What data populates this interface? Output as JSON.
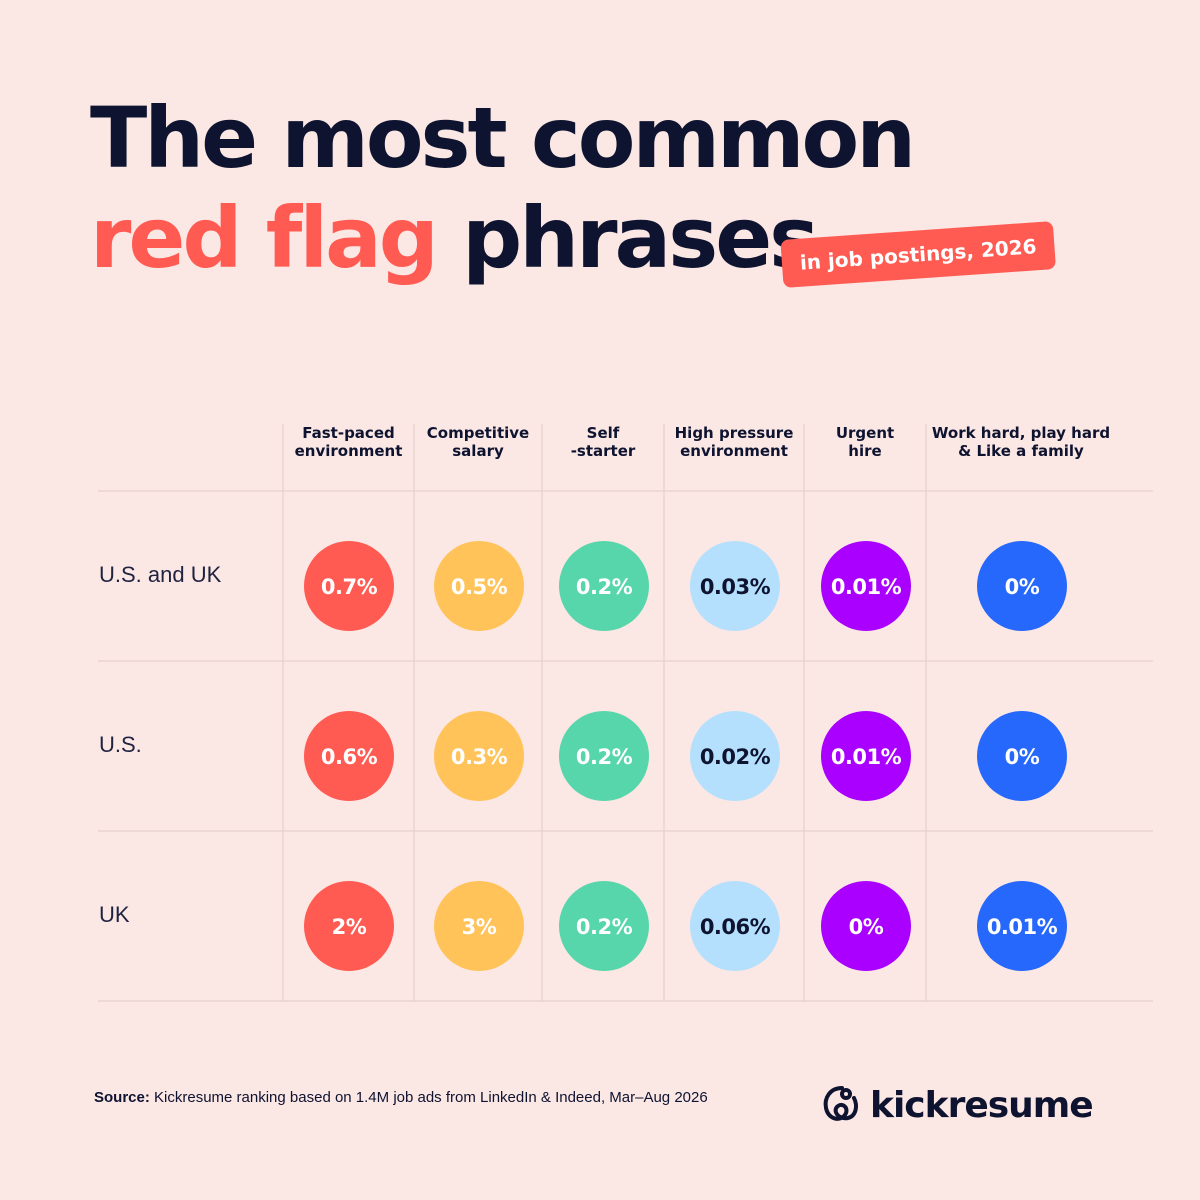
{
  "title": {
    "line1": "The most common",
    "highlight": "red flag",
    "rest": " phrases"
  },
  "tag": "in job postings, 2026",
  "chart_data": {
    "type": "table",
    "columns": [
      "Fast-paced\nenvironment",
      "Competitive\nsalary",
      "Self\n-starter",
      "High pressure\nenvironment",
      "Urgent\nhire",
      "Work hard, play hard\n& Like a family"
    ],
    "column_colors": [
      "#ff5b52",
      "#ffc35a",
      "#57d6ab",
      "#b4e0fd",
      "#a900ff",
      "#2568fb"
    ],
    "column_text_colors": [
      "#ffffff",
      "#ffffff",
      "#ffffff",
      "#0e1330",
      "#ffffff",
      "#ffffff"
    ],
    "rows": [
      {
        "label": "U.S. and UK",
        "values": [
          "0.7%",
          "0.5%",
          "0.2%",
          "0.03%",
          "0.01%",
          "0%"
        ]
      },
      {
        "label": "U.S.",
        "values": [
          "0.6%",
          "0.3%",
          "0.2%",
          "0.02%",
          "0.01%",
          "0%"
        ]
      },
      {
        "label": "UK",
        "values": [
          "2%",
          "3%",
          "0.2%",
          "0.06%",
          "0%",
          "0.01%"
        ]
      }
    ]
  },
  "source": {
    "label": "Source:",
    "text": " Kickresume ranking based on 1.4M job ads from LinkedIn & Indeed, Mar–Aug 2026"
  },
  "brand": {
    "name": "kickresume",
    "icon": "kickresume-logo-icon"
  }
}
